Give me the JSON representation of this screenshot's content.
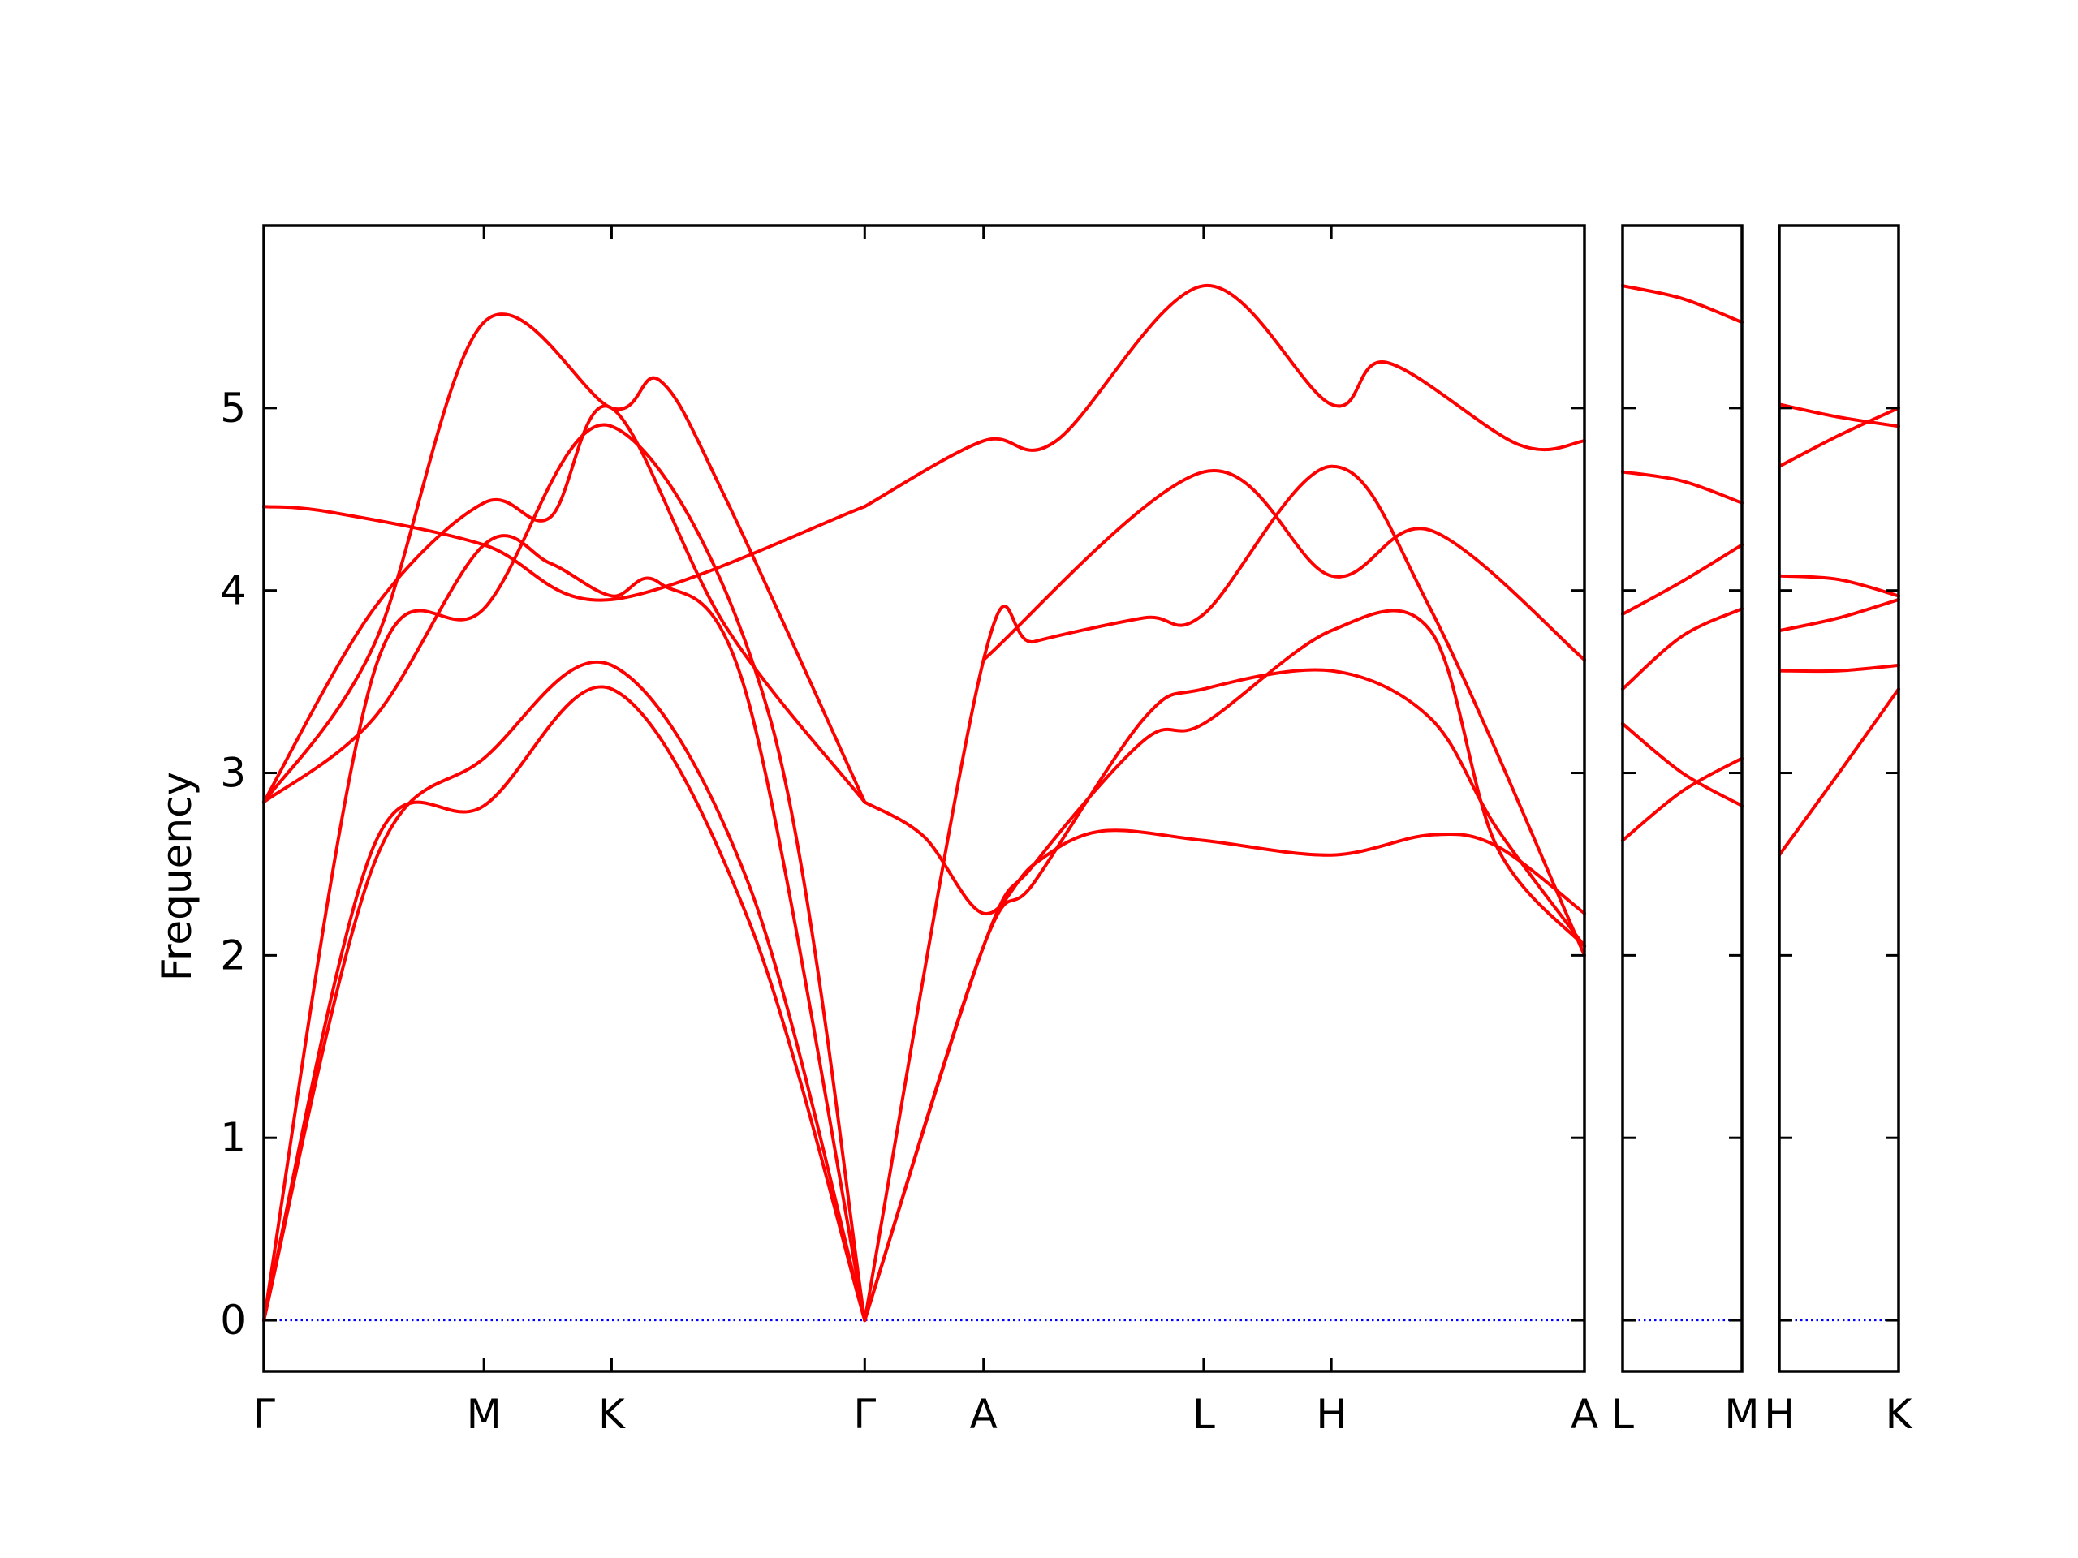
{
  "chart_data": {
    "type": "line",
    "ylabel": "Frequency",
    "xlabel": "",
    "title": "",
    "ylim": [
      -0.28,
      6.0
    ],
    "yticks": [
      0,
      1,
      2,
      3,
      4,
      5
    ],
    "grid": false,
    "legend": "none",
    "colors": {
      "band": "#ff0000",
      "zero": "#0000ff",
      "axis": "#000000"
    },
    "panels": [
      {
        "id": "main",
        "x": [
          0,
          1,
          1.58,
          2.73,
          3.27,
          4.27,
          4.85,
          6.0
        ],
        "tick_labels": [
          "Γ",
          "M",
          "K",
          "Γ",
          "A",
          "L",
          "H",
          "A"
        ],
        "bands": [
          [
            [
              0,
              0
            ],
            [
              0.5,
              2.6
            ],
            [
              1,
              2.82
            ],
            [
              1.58,
              3.46
            ],
            [
              2.2,
              2.2
            ],
            [
              2.73,
              0
            ]
          ],
          [
            [
              0,
              0
            ],
            [
              0.5,
              2.5
            ],
            [
              1,
              3.08
            ],
            [
              1.58,
              3.59
            ],
            [
              2.2,
              2.4
            ],
            [
              2.73,
              0
            ]
          ],
          [
            [
              0,
              0
            ],
            [
              0.5,
              3.55
            ],
            [
              1,
              3.9
            ],
            [
              1.58,
              4.9
            ],
            [
              2.3,
              3.3
            ],
            [
              2.73,
              0
            ]
          ],
          [
            [
              0,
              2.84
            ],
            [
              0.5,
              3.9
            ],
            [
              1,
              4.48
            ],
            [
              1.3,
              4.4
            ],
            [
              1.58,
              5.0
            ],
            [
              2.1,
              3.8
            ],
            [
              2.73,
              2.84
            ]
          ],
          [
            [
              0,
              2.84
            ],
            [
              0.5,
              3.7
            ],
            [
              1,
              5.47
            ],
            [
              1.58,
              5.0
            ],
            [
              1.8,
              5.15
            ],
            [
              2.1,
              4.5
            ],
            [
              2.73,
              2.84
            ]
          ],
          [
            [
              0,
              4.46
            ],
            [
              0.3,
              4.43
            ],
            [
              1,
              4.25
            ],
            [
              1.58,
              3.95
            ],
            [
              2.73,
              4.46
            ]
          ],
          [
            [
              0,
              2.84
            ],
            [
              0.5,
              3.3
            ],
            [
              1,
              4.25
            ],
            [
              1.3,
              4.15
            ],
            [
              1.58,
              3.97
            ],
            [
              1.8,
              4.04
            ],
            [
              2.2,
              3.4
            ],
            [
              2.73,
              0
            ]
          ],
          [
            [
              2.73,
              4.46
            ],
            [
              3.27,
              4.82
            ],
            [
              3.6,
              4.82
            ],
            [
              4.27,
              5.67
            ],
            [
              4.85,
              5.02
            ],
            [
              5.1,
              5.25
            ],
            [
              5.7,
              4.8
            ],
            [
              6.0,
              4.82
            ]
          ],
          [
            [
              2.73,
              2.84
            ],
            [
              3.0,
              2.65
            ],
            [
              3.27,
              2.23
            ],
            [
              3.5,
              2.5
            ],
            [
              3.8,
              2.68
            ],
            [
              4.27,
              2.63
            ],
            [
              4.85,
              2.55
            ],
            [
              5.3,
              2.66
            ],
            [
              5.6,
              2.6
            ],
            [
              6.0,
              2.23
            ]
          ],
          [
            [
              2.73,
              0
            ],
            [
              3.27,
              2.05
            ],
            [
              3.5,
              2.4
            ],
            [
              4.0,
              3.3
            ],
            [
              4.27,
              3.46
            ],
            [
              4.85,
              3.56
            ],
            [
              5.3,
              3.3
            ],
            [
              5.6,
              2.7
            ],
            [
              6.0,
              2.05
            ]
          ],
          [
            [
              2.73,
              0
            ],
            [
              3.27,
              2.05
            ],
            [
              3.5,
              2.5
            ],
            [
              4.0,
              3.18
            ],
            [
              4.27,
              3.27
            ],
            [
              4.85,
              3.78
            ],
            [
              5.3,
              3.78
            ],
            [
              5.6,
              2.6
            ],
            [
              6.0,
              2.05
            ]
          ],
          [
            [
              2.73,
              0
            ],
            [
              3.27,
              3.62
            ],
            [
              3.5,
              3.72
            ],
            [
              4.0,
              3.85
            ],
            [
              4.27,
              3.87
            ],
            [
              4.85,
              4.68
            ],
            [
              5.3,
              3.9
            ],
            [
              6.0,
              2.0
            ]
          ],
          [
            [
              3.27,
              3.62
            ],
            [
              4.27,
              4.65
            ],
            [
              4.85,
              4.08
            ],
            [
              5.3,
              4.33
            ],
            [
              6.0,
              3.62
            ]
          ]
        ]
      },
      {
        "id": "lm",
        "x": [
          0,
          1
        ],
        "tick_labels": [
          "L",
          "M"
        ],
        "bands": [
          [
            [
              0,
              2.63
            ],
            [
              0.5,
              2.9
            ],
            [
              1,
              3.08
            ]
          ],
          [
            [
              0,
              3.27
            ],
            [
              0.5,
              3.0
            ],
            [
              1,
              2.82
            ]
          ],
          [
            [
              0,
              3.46
            ],
            [
              0.5,
              3.75
            ],
            [
              1,
              3.9
            ]
          ],
          [
            [
              0,
              3.87
            ],
            [
              0.5,
              4.05
            ],
            [
              1,
              4.25
            ]
          ],
          [
            [
              0,
              4.65
            ],
            [
              0.5,
              4.6
            ],
            [
              1,
              4.48
            ]
          ],
          [
            [
              0,
              5.67
            ],
            [
              0.5,
              5.6
            ],
            [
              1,
              5.47
            ]
          ]
        ]
      },
      {
        "id": "hk",
        "x": [
          0,
          1
        ],
        "tick_labels": [
          "H",
          "K"
        ],
        "bands": [
          [
            [
              0,
              2.55
            ],
            [
              0.5,
              3.0
            ],
            [
              1,
              3.46
            ]
          ],
          [
            [
              0,
              3.56
            ],
            [
              0.5,
              3.56
            ],
            [
              1,
              3.59
            ]
          ],
          [
            [
              0,
              3.78
            ],
            [
              0.5,
              3.85
            ],
            [
              1,
              3.95
            ]
          ],
          [
            [
              0,
              4.08
            ],
            [
              0.5,
              4.06
            ],
            [
              1,
              3.97
            ]
          ],
          [
            [
              0,
              4.68
            ],
            [
              0.5,
              4.85
            ],
            [
              1,
              5.0
            ]
          ],
          [
            [
              0,
              5.02
            ],
            [
              0.5,
              4.95
            ],
            [
              1,
              4.9
            ]
          ]
        ]
      }
    ]
  }
}
